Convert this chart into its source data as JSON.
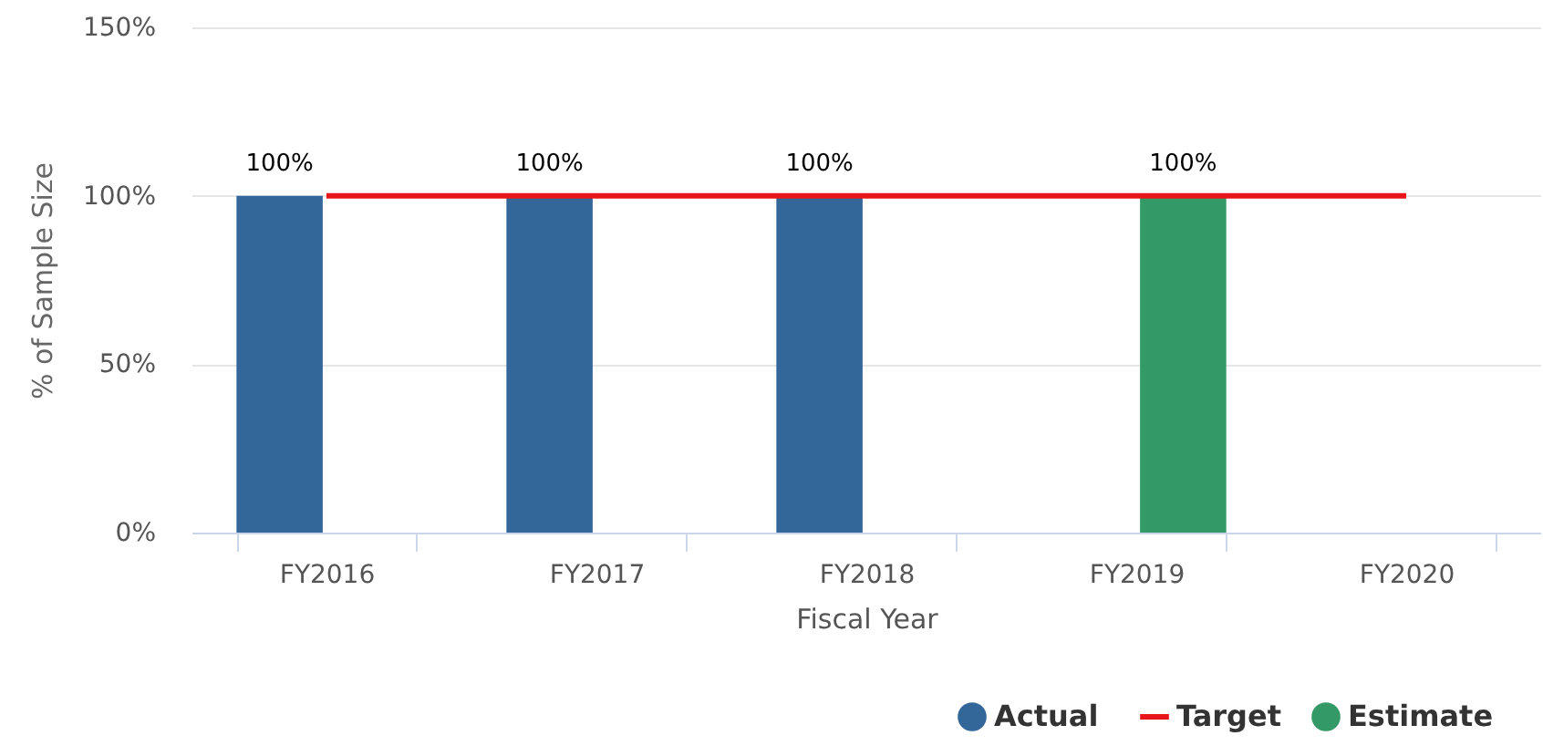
{
  "chart_data": {
    "type": "bar",
    "xlabel": "Fiscal Year",
    "ylabel": "% of Sample Size",
    "categories": [
      "FY2016",
      "FY2017",
      "FY2018",
      "FY2019",
      "FY2020"
    ],
    "series": [
      {
        "name": "Actual",
        "color": "#336699",
        "values": [
          100,
          100,
          100,
          null,
          null
        ],
        "value_labels": [
          "100%",
          "100%",
          "100%",
          null,
          null
        ]
      },
      {
        "name": "Target",
        "type": "line",
        "color": "#e8161b",
        "values": [
          100,
          100,
          100,
          100,
          100
        ]
      },
      {
        "name": "Estimate",
        "color": "#339966",
        "values": [
          null,
          null,
          null,
          100,
          null
        ],
        "value_labels": [
          null,
          null,
          null,
          "100%",
          null
        ]
      }
    ],
    "ylim": [
      0,
      150
    ],
    "yticks": [
      {
        "value": 0,
        "label": "0%"
      },
      {
        "value": 50,
        "label": "50%"
      },
      {
        "value": 100,
        "label": "100%"
      },
      {
        "value": 150,
        "label": "150%"
      }
    ],
    "grid": "y",
    "legend": "bottom right",
    "marker": "none"
  }
}
